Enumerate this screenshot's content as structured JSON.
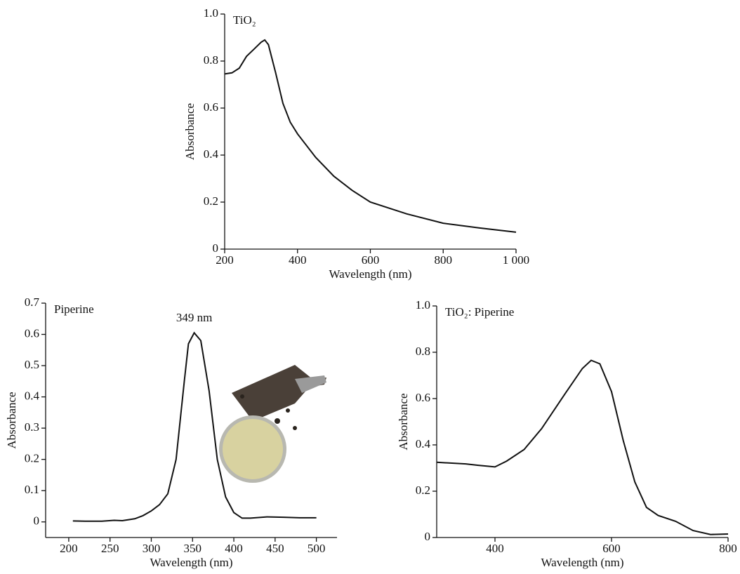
{
  "chart_data": [
    {
      "type": "line",
      "label": "TiO₂",
      "x_label": "Wavelength (nm)",
      "y_label": "Absorbance",
      "x": [
        200,
        220,
        240,
        260,
        280,
        300,
        310,
        320,
        340,
        360,
        380,
        400,
        450,
        500,
        550,
        600,
        700,
        800,
        900,
        1000
      ],
      "values": [
        0.745,
        0.75,
        0.77,
        0.82,
        0.85,
        0.88,
        0.89,
        0.87,
        0.75,
        0.62,
        0.54,
        0.49,
        0.39,
        0.31,
        0.25,
        0.2,
        0.15,
        0.11,
        0.09,
        0.072
      ],
      "color": "#111111",
      "xlim": [
        200,
        1000
      ],
      "ylim": [
        0,
        1
      ],
      "xticks": [
        200,
        400,
        600,
        800,
        {
          "value": 1000,
          "label": "1 000"
        }
      ],
      "yticks": [
        0,
        0.2,
        0.4,
        0.6,
        0.8,
        {
          "value": 1,
          "label": "1.0"
        }
      ]
    },
    {
      "type": "line",
      "label": "Piperine",
      "x_label": "Wavelength (nm)",
      "y_label": "Absorbance",
      "annotation": "349 nm",
      "x": [
        205,
        220,
        240,
        255,
        265,
        280,
        290,
        300,
        310,
        320,
        330,
        340,
        345,
        352,
        360,
        370,
        380,
        390,
        400,
        410,
        420,
        440,
        460,
        480,
        500
      ],
      "values": [
        0.003,
        0.002,
        0.002,
        0.005,
        0.004,
        0.01,
        0.02,
        0.035,
        0.055,
        0.09,
        0.2,
        0.45,
        0.57,
        0.605,
        0.58,
        0.42,
        0.2,
        0.08,
        0.03,
        0.012,
        0.012,
        0.016,
        0.015,
        0.013,
        0.013
      ],
      "color": "#111111",
      "xlim": [
        172,
        525
      ],
      "ylim": [
        -0.05,
        0.7
      ],
      "xticks": [
        200,
        250,
        300,
        350,
        400,
        450,
        500
      ],
      "yticks": [
        0,
        0.1,
        0.2,
        0.3,
        0.4,
        0.5,
        0.6,
        0.7
      ]
    },
    {
      "type": "line",
      "label": "TiO₂: Piperine",
      "x_label": "Wavelength (nm)",
      "y_label": "Absorbance",
      "x": [
        300,
        350,
        370,
        400,
        420,
        450,
        480,
        520,
        550,
        565,
        580,
        600,
        620,
        640,
        660,
        680,
        710,
        740,
        770,
        800
      ],
      "values": [
        0.325,
        0.318,
        0.312,
        0.305,
        0.33,
        0.38,
        0.47,
        0.62,
        0.73,
        0.765,
        0.75,
        0.63,
        0.42,
        0.24,
        0.13,
        0.095,
        0.07,
        0.03,
        0.013,
        0.015
      ],
      "color": "#111111",
      "xlim": [
        300,
        800
      ],
      "ylim": [
        0,
        1
      ],
      "xticks": [
        400,
        600,
        800
      ],
      "yticks": [
        0,
        0.2,
        0.4,
        0.6,
        0.8,
        {
          "value": 1,
          "label": "1.0"
        }
      ]
    }
  ]
}
